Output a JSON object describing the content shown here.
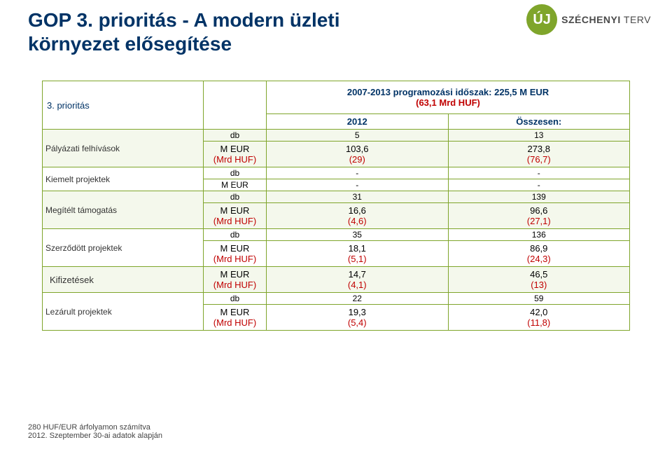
{
  "title_line1": "GOP 3. prioritás - A modern üzleti",
  "title_line2": "környezet elősegítése",
  "logo": {
    "badge": "ÚJ",
    "text_bold": "SZÉCHENYI",
    "text_light": " TERV"
  },
  "header": {
    "row_label": "3. prioritás",
    "top": "2007-2013 programozási időszak: 225,5 M EUR",
    "top_red": "(63,1 Mrd HUF)",
    "col1": "2012",
    "col2": "Összesen:"
  },
  "rows": [
    {
      "label": "Pályázati felhívások",
      "shade": true,
      "sub": [
        {
          "unit": "db",
          "v1": "5",
          "v2": "13"
        },
        {
          "unit": "M EUR\n(Mrd HUF)",
          "v1": "103,6",
          "p1": "(29)",
          "v2": "273,8",
          "p2": "(76,7)"
        }
      ]
    },
    {
      "label": "Kiemelt projektek",
      "shade": false,
      "sub": [
        {
          "unit": "db",
          "v1": "-",
          "v2": "-"
        },
        {
          "unit": "M EUR",
          "v1": "-",
          "v2": "-"
        }
      ]
    },
    {
      "label": "Megítélt támogatás",
      "shade": true,
      "sub": [
        {
          "unit": "db",
          "v1": "31",
          "v2": "139"
        },
        {
          "unit": "M EUR\n(Mrd HUF)",
          "v1": "16,6",
          "p1": "(4,6)",
          "v2": "96,6",
          "p2": "(27,1)"
        }
      ]
    },
    {
      "label": "Szerződött projektek",
      "shade": false,
      "sub": [
        {
          "unit": "db",
          "v1": "35",
          "v2": "136"
        },
        {
          "unit": "M EUR\n(Mrd HUF)",
          "v1": "18,1",
          "p1": "(5,1)",
          "v2": "86,9",
          "p2": "(24,3)"
        }
      ]
    },
    {
      "label": "Kifizetések",
      "shade": true,
      "sub": [
        {
          "unit": "M EUR\n(Mrd HUF)",
          "v1": "14,7",
          "p1": "(4,1)",
          "v2": "46,5",
          "p2": "(13)"
        }
      ]
    },
    {
      "label": "Lezárult projektek",
      "shade": false,
      "sub": [
        {
          "unit": "db",
          "v1": "22",
          "v2": "59"
        },
        {
          "unit": "M EUR\n(Mrd HUF)",
          "v1": "19,3",
          "p1": "(5,4)",
          "v2": "42,0",
          "p2": "(11,8)"
        }
      ]
    }
  ],
  "footer": {
    "line1": "280 HUF/EUR  árfolyamon számítva",
    "line2": "2012. Szeptember 30-ai adatok alapján"
  },
  "colors": {
    "border": "#7fa52b",
    "title": "#003366",
    "red": "#C00000"
  }
}
